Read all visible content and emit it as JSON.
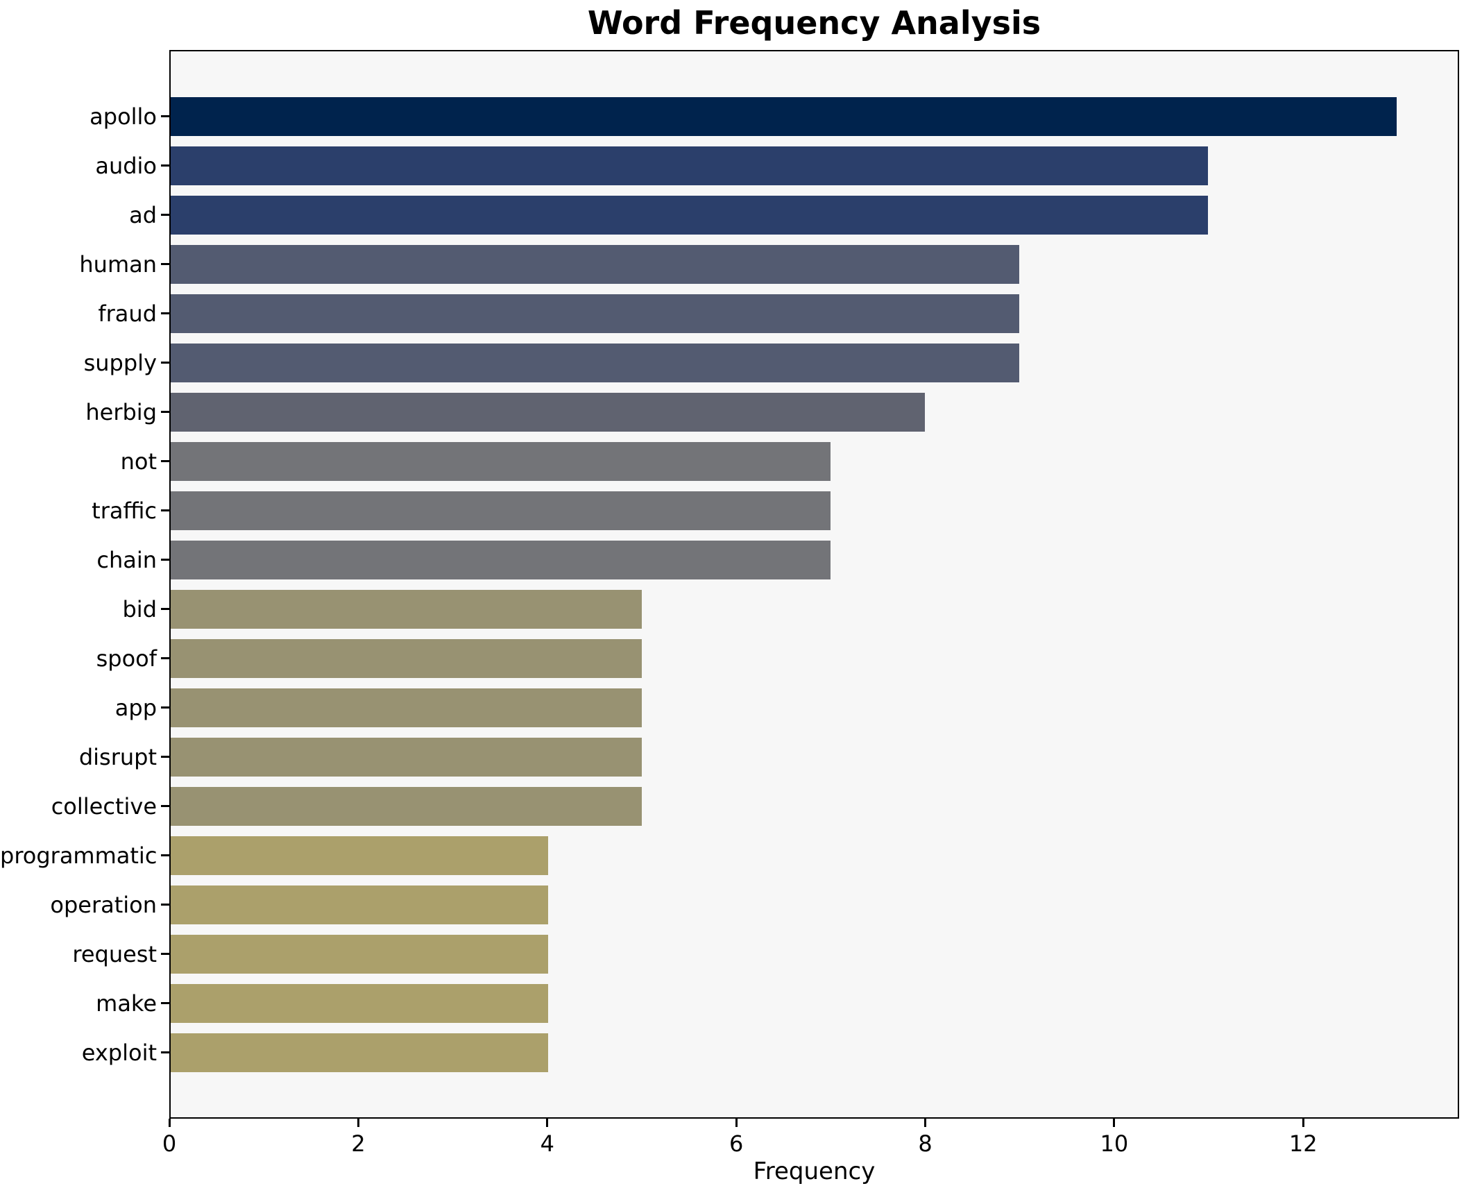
{
  "chart_data": {
    "type": "bar",
    "orientation": "horizontal",
    "title": "Word Frequency Analysis",
    "xlabel": "Frequency",
    "ylabel": "",
    "categories": [
      "apollo",
      "audio",
      "ad",
      "human",
      "fraud",
      "supply",
      "herbig",
      "not",
      "traffic",
      "chain",
      "bid",
      "spoof",
      "app",
      "disrupt",
      "collective",
      "programmatic",
      "operation",
      "request",
      "make",
      "exploit"
    ],
    "values": [
      13,
      11,
      11,
      9,
      9,
      9,
      8,
      7,
      7,
      7,
      5,
      5,
      5,
      5,
      5,
      4,
      4,
      4,
      4,
      4
    ],
    "bar_colors": [
      "#00234d",
      "#2b3f6b",
      "#2b3f6b",
      "#535b71",
      "#535b71",
      "#535b71",
      "#606370",
      "#737478",
      "#737478",
      "#737478",
      "#989272",
      "#989272",
      "#989272",
      "#989272",
      "#989272",
      "#aba06b",
      "#aba06b",
      "#aba06b",
      "#aba06b",
      "#aba06b"
    ],
    "xticks": [
      0,
      2,
      4,
      6,
      8,
      10,
      12
    ],
    "xtick_labels": [
      "0",
      "2",
      "4",
      "6",
      "8",
      "10",
      "12"
    ],
    "xlim": [
      0,
      13.65
    ],
    "grid": false,
    "legend": "none",
    "colors": {
      "figure_bg": "#ffffff",
      "plot_bg": "#f7f7f7",
      "spine": "#000000",
      "tick": "#000000",
      "text": "#000000"
    }
  }
}
